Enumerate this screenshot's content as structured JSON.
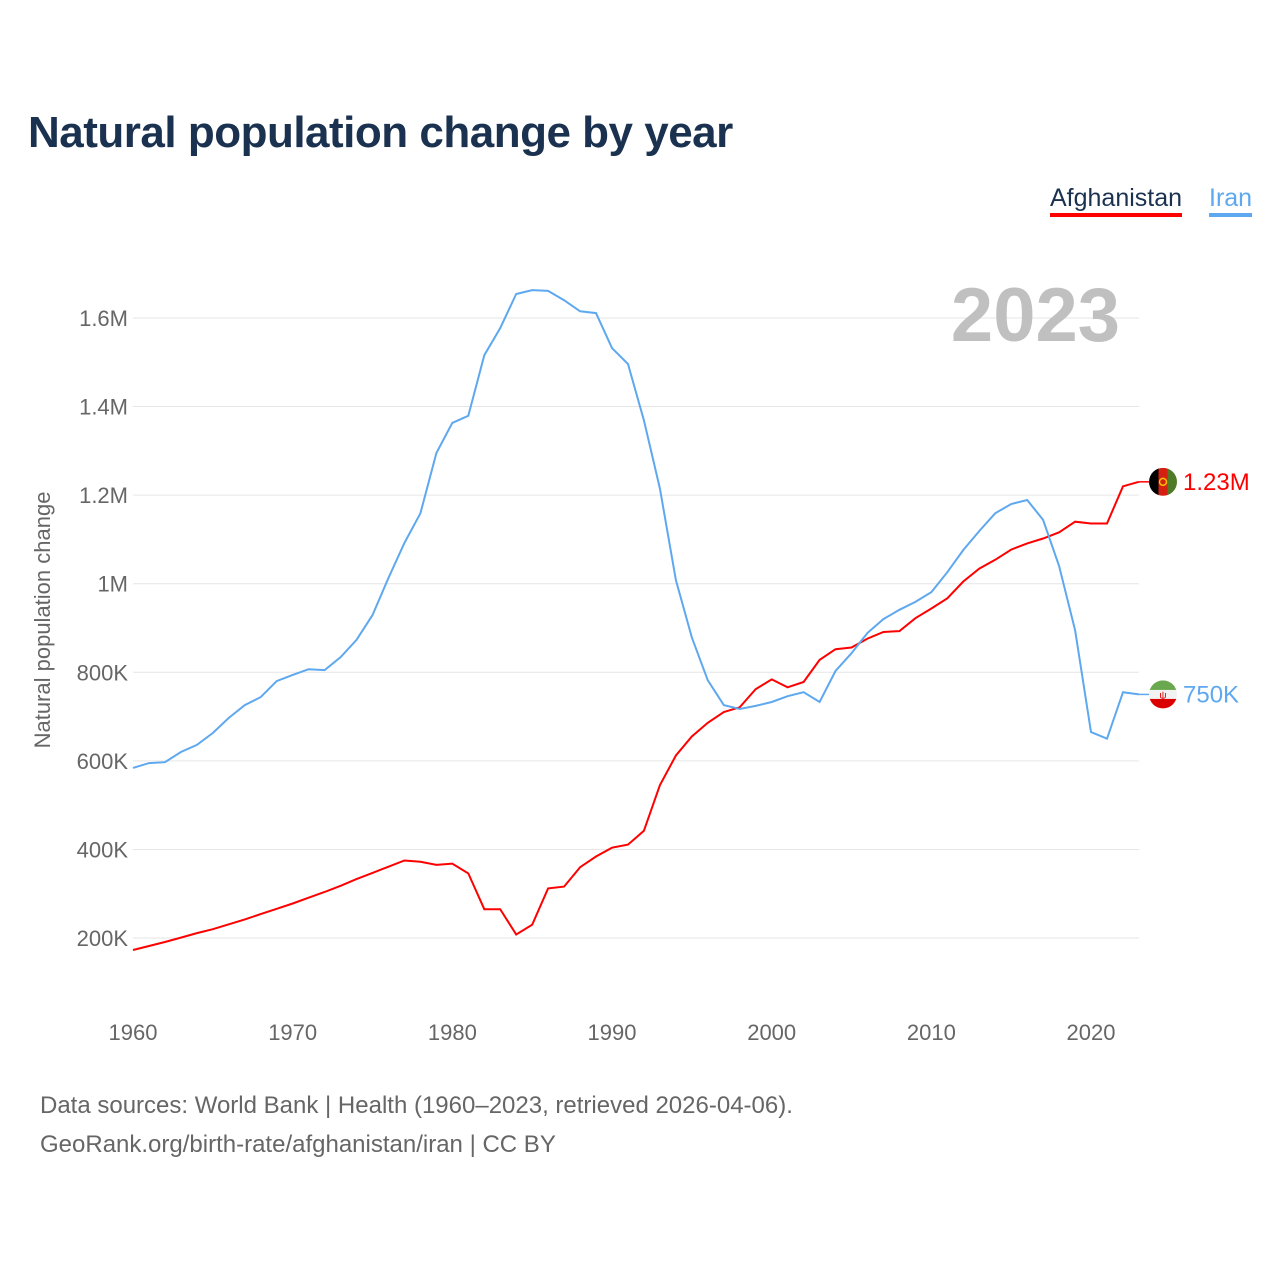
{
  "title": "Natural population change by year",
  "year_label": "2023",
  "legend": [
    {
      "name": "Afghanistan",
      "color": "#ff0000"
    },
    {
      "name": "Iran",
      "color": "#5ea8ef"
    }
  ],
  "footer": {
    "line1": "Data sources: World Bank | Health (1960–2023, retrieved 2026-04-06).",
    "line2": "GeoRank.org/birth-rate/afghanistan/iran | CC BY"
  },
  "chart_data": {
    "type": "line",
    "title": "Natural population change by year",
    "ylabel": "Natural population change",
    "xlabel": "",
    "xlim": [
      1960,
      2023
    ],
    "ylim": [
      0,
      1700000
    ],
    "x_ticks": [
      1960,
      1970,
      1980,
      1990,
      2000,
      2010,
      2020
    ],
    "y_ticks": [
      {
        "v": 200000,
        "l": "200K"
      },
      {
        "v": 400000,
        "l": "400K"
      },
      {
        "v": 600000,
        "l": "600K"
      },
      {
        "v": 800000,
        "l": "800K"
      },
      {
        "v": 1000000,
        "l": "1M"
      },
      {
        "v": 1200000,
        "l": "1.2M"
      },
      {
        "v": 1400000,
        "l": "1.4M"
      },
      {
        "v": 1600000,
        "l": "1.6M"
      }
    ],
    "grid": true,
    "x_start": 1960,
    "series": [
      {
        "name": "Afghanistan",
        "color": "#ff0000",
        "end_label": "1.23M",
        "flag": "afghanistan-flag",
        "values_k": [
          173,
          182,
          191,
          201,
          211,
          220,
          231,
          242,
          254,
          266,
          278,
          291,
          304,
          318,
          333,
          347,
          361,
          375,
          372,
          365,
          368,
          346,
          265,
          265,
          208,
          230,
          312,
          316,
          360,
          384,
          404,
          411,
          442,
          545,
          612,
          655,
          686,
          710,
          721,
          762,
          784,
          766,
          778,
          828,
          852,
          856,
          876,
          891,
          893,
          922,
          944,
          967,
          1005,
          1034,
          1054,
          1077,
          1091,
          1102,
          1116,
          1140,
          1136,
          1136,
          1220,
          1230
        ]
      },
      {
        "name": "Iran",
        "color": "#5ea8ef",
        "end_label": "750K",
        "flag": "iran-flag",
        "values_k": [
          584,
          595,
          597,
          620,
          636,
          663,
          697,
          726,
          744,
          780,
          794,
          807,
          805,
          834,
          873,
          929,
          1013,
          1092,
          1159,
          1295,
          1363,
          1379,
          1516,
          1577,
          1654,
          1663,
          1661,
          1640,
          1615,
          1611,
          1532,
          1496,
          1369,
          1215,
          1008,
          879,
          782,
          726,
          717,
          724,
          733,
          746,
          755,
          733,
          803,
          843,
          889,
          920,
          941,
          959,
          981,
          1026,
          1076,
          1119,
          1159,
          1180,
          1189,
          1144,
          1040,
          895,
          665,
          650,
          755,
          750
        ]
      }
    ]
  }
}
